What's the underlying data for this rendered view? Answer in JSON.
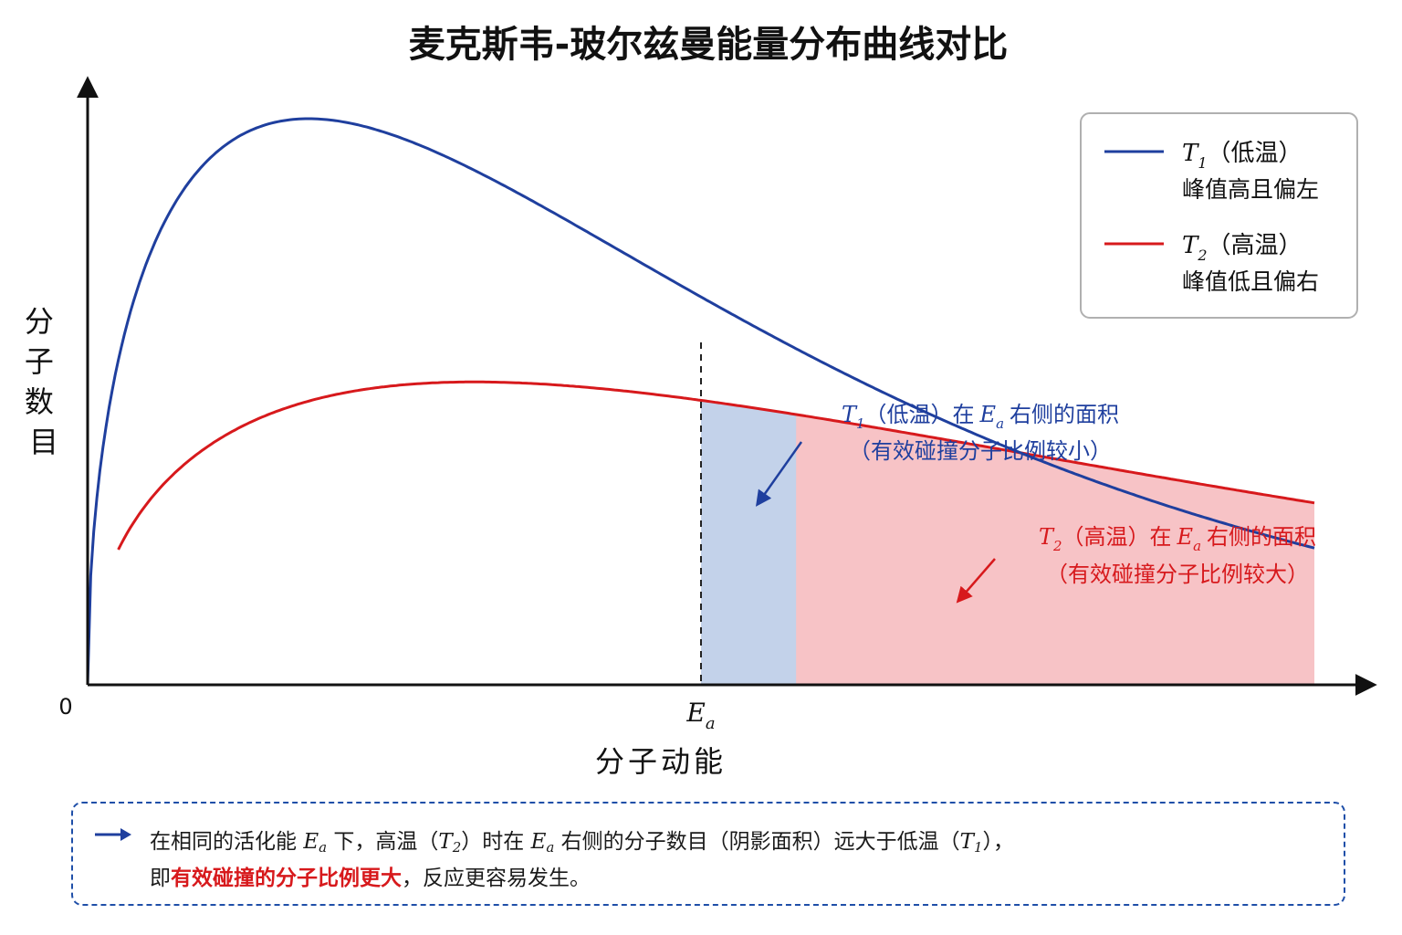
{
  "chart_data": {
    "type": "line",
    "title": "麦克斯韦-玻尔兹曼能量分布曲线对比",
    "xlabel": "分子动能",
    "ylabel": "分子数目",
    "x_ticks": [
      "0",
      "Eₐ"
    ],
    "series": [
      {
        "name": "T₁（低温）",
        "legend_note": "峰值高且偏左",
        "color": "#1f3f9e",
        "shade_color": "#c3d2ea",
        "peak_x": 0.36,
        "peak_y": 1.0
      },
      {
        "name": "T₂（高温）",
        "legend_note": "峰值低且偏右",
        "color": "#d7191c",
        "shade_color": "#f6bcc0",
        "peak_x": 0.63,
        "peak_y": 0.535
      }
    ],
    "ea_x": 1.0,
    "xlim": [
      0,
      2.0
    ],
    "ylim": [
      0,
      1.12
    ],
    "annotations": [
      {
        "series": "T1",
        "line1": "右侧的面积",
        "line2": "（有效碰撞分子比例较小）",
        "color": "#1f3f9e"
      },
      {
        "series": "T2",
        "line1": "右侧的面积",
        "line2": "（有效碰撞分子比例较大）",
        "color": "#d7191c"
      }
    ],
    "grid": false,
    "legend_position": "top-right"
  },
  "labels": {
    "origin": "0",
    "ea_symbol": "E",
    "ea_sub": "a",
    "t_symbol": "T",
    "t1_sub": "1",
    "t2_sub": "2",
    "t1_paren": "（低温）",
    "t2_paren": "（高温）",
    "zai": "在",
    "y_chars": [
      "分",
      "子",
      "数",
      "目"
    ]
  },
  "note": {
    "p1": "在相同的活化能",
    "p2": "下，高温（",
    "p3": "）时在",
    "p4": "右侧的分子数目（阴影面积）远大于低温（",
    "p5": "），",
    "p6": "即",
    "p7": "有效碰撞的分子比例更大",
    "p8": "，反应更容易发生。"
  }
}
